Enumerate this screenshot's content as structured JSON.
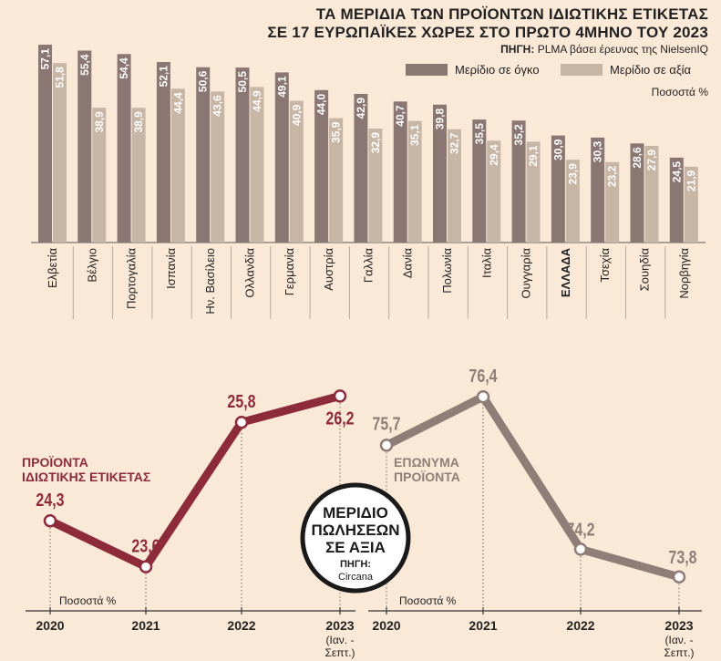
{
  "header": {
    "title_line1": "ΤΑ ΜΕΡΙΔΙΑ ΤΩΝ ΠΡΟΪΟΝΤΩΝ ΙΔΙΩΤΙΚΗΣ ΕΤΙΚΕΤΑΣ",
    "title_line2": "ΣΕ 17 ΕΥΡΩΠΑΪΚΕΣ ΧΩΡΕΣ ΣΤΟ ΠΡΩΤΟ 4ΜΗΝΟ ΤΟΥ 2023",
    "source_label": "ΠΗΓΗ:",
    "source_text": "PLMA βάσει έρευνας της NielsenIQ",
    "unit": "Ποσοστά %"
  },
  "colors": {
    "background": "#fbe9d8",
    "volume_bar": "#8a7672",
    "value_bar": "#c7b5a6",
    "private_label_line": "#8d2b3a",
    "brand_line": "#8f7d78"
  },
  "chart_data": [
    {
      "type": "bar",
      "categories": [
        "Ελβετία",
        "Βέλγιο",
        "Πορτογαλία",
        "Ισπανία",
        "Ην. Βασίλειο",
        "Ολλανδία",
        "Γερμανία",
        "Αυστρία",
        "Γαλλία",
        "Δανία",
        "Πολωνία",
        "Ιταλία",
        "Ουγγαρία",
        "ΕΛΛΑΔΑ",
        "Τσεχία",
        "Σουηδία",
        "Νορβηγία"
      ],
      "highlight_category": "ΕΛΛΑΔΑ",
      "series": [
        {
          "name": "Μερίδιο σε όγκο",
          "values": [
            57.1,
            55.4,
            54.4,
            52.1,
            50.6,
            50.5,
            49.1,
            44.0,
            42.9,
            40.7,
            39.8,
            35.5,
            35.2,
            30.9,
            30.3,
            28.6,
            24.5
          ]
        },
        {
          "name": "Μερίδιο σε αξία",
          "values": [
            51.8,
            38.9,
            38.9,
            44.4,
            43.6,
            44.9,
            40.9,
            35.9,
            32.9,
            35.1,
            32.7,
            29.4,
            29.1,
            23.9,
            23.2,
            27.9,
            21.9
          ]
        }
      ],
      "value_labels": {
        "volume": [
          "57,1",
          "55,4",
          "54,4",
          "52,1",
          "50,6",
          "50,5",
          "49,1",
          "44,0",
          "42,9",
          "40,7",
          "39,8",
          "35,5",
          "35,2",
          "30,9",
          "30,3",
          "28,6",
          "24,5"
        ],
        "value": [
          "51,8",
          "38,9",
          "38,9",
          "44,4",
          "43,6",
          "44,9",
          "40,9",
          "35,9",
          "32,9",
          "35,1",
          "32,7",
          "29,4",
          "29,1",
          "23,9",
          "23,2",
          "27,9",
          "21,9"
        ]
      },
      "ylim": [
        0,
        60
      ],
      "legend": "top-right",
      "unit": "Ποσοστά %"
    },
    {
      "type": "line",
      "x": [
        "2020",
        "2021",
        "2022",
        "2023"
      ],
      "x_notes": [
        "",
        "",
        "",
        "(Ιαν. -\nΣεπτ.)"
      ],
      "series": [
        {
          "name": "ΠΡΟΪΟΝΤΑ ΙΔΙΩΤΙΚΗΣ ΕΤΙΚΕΤΑΣ",
          "values": [
            24.3,
            23.6,
            25.8,
            26.2
          ],
          "labels": [
            "24,3",
            "23,6",
            "25,8",
            "26,2"
          ]
        }
      ],
      "ylim": [
        23.4,
        26.4
      ],
      "unit": "Ποσοστά %"
    },
    {
      "type": "line",
      "x": [
        "2020",
        "2021",
        "2022",
        "2023"
      ],
      "x_notes": [
        "",
        "",
        "",
        "(Ιαν. -\nΣεπτ.)"
      ],
      "series": [
        {
          "name": "ΕΠΩΝΥΜΑ ΠΡΟΪΟΝΤΑ",
          "values": [
            75.7,
            76.4,
            74.2,
            73.8
          ],
          "labels": [
            "75,7",
            "76,4",
            "74,2",
            "73,8"
          ]
        }
      ],
      "ylim": [
        73.6,
        76.6
      ],
      "unit": "Ποσοστά %"
    }
  ],
  "lower": {
    "left_series_line1": "ΠΡΟΪΟΝΤΑ",
    "left_series_line2": "ΙΔΙΩΤΙΚΗΣ ΕΤΙΚΕΤΑΣ",
    "right_series_line1": "ΕΠΩΝΥΜΑ",
    "right_series_line2": "ΠΡΟΪΟΝΤΑ",
    "badge_line1": "ΜΕΡΙΔΙΟ",
    "badge_line2": "ΠΩΛΗΣΕΩΝ",
    "badge_line3": "ΣΕ ΑΞΙΑ",
    "badge_source_label": "ΠΗΓΗ:",
    "badge_source": "Circana",
    "unit": "Ποσοστά %",
    "years": [
      "2020",
      "2021",
      "2022",
      "2023"
    ],
    "last_year_note1": "(Ιαν. -",
    "last_year_note2": "Σεπτ.)"
  }
}
